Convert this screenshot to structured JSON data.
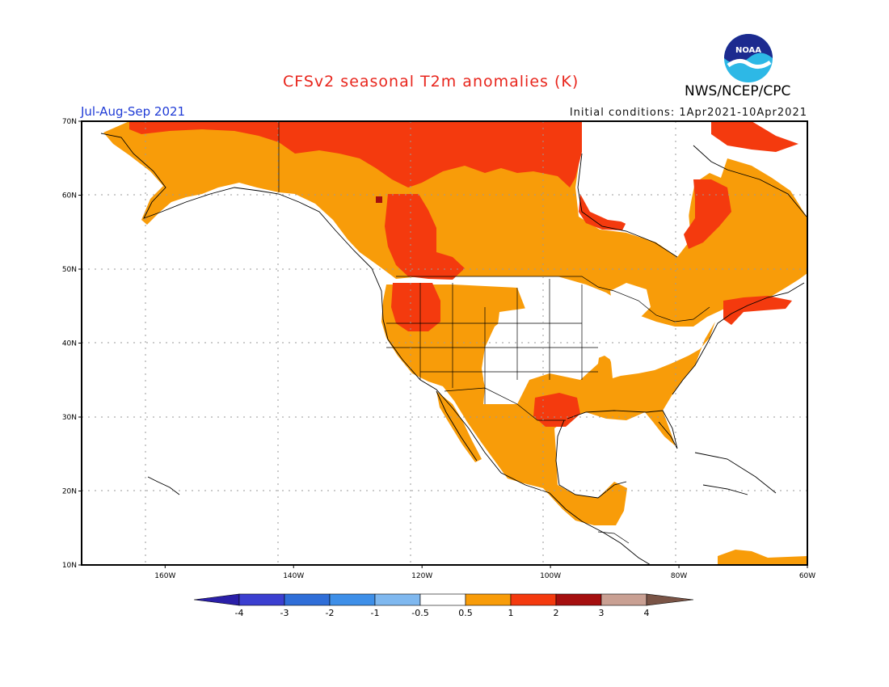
{
  "header": {
    "title": "CFSv2 seasonal T2m anomalies (K)",
    "season": "Jul-Aug-Sep 2021",
    "initial_conditions": "Initial conditions: 1Apr2021-10Apr2021",
    "agency": "NWS/NCEP/CPC",
    "logo_text": "NOAA"
  },
  "map": {
    "lon_range": [
      -173,
      -60
    ],
    "lat_range": [
      10,
      70
    ],
    "lat_ticks": [
      "70N",
      "60N",
      "50N",
      "40N",
      "30N",
      "20N",
      "10N"
    ],
    "lon_ticks": [
      "160W",
      "140W",
      "120W",
      "100W",
      "80W",
      "60W"
    ]
  },
  "colorbar": {
    "labels": [
      "-4",
      "-3",
      "-2",
      "-1",
      "-0.5",
      "0.5",
      "1",
      "2",
      "3",
      "4"
    ],
    "colors": [
      "#2a1fa8",
      "#3b3fd0",
      "#2f6ed8",
      "#3e8fe8",
      "#7fb8ef",
      "#ffffff",
      "#f89c09",
      "#f43a0e",
      "#a50f0f",
      "#c9a093",
      "#7a5446"
    ]
  },
  "colors": {
    "title": "#e8251c",
    "season": "#1f3bd6",
    "orange": "#f89c09",
    "red": "#f43a0e",
    "darkred": "#a50f0f"
  }
}
